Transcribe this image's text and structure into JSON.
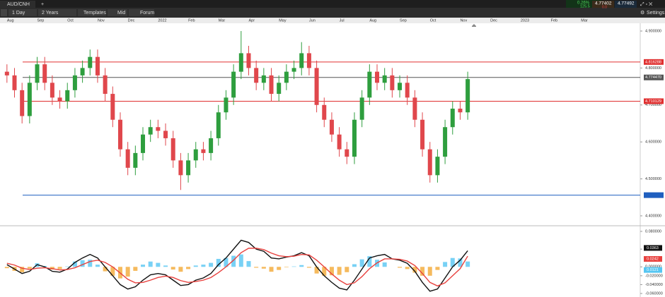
{
  "toolbar": {
    "symbol": "AUD/CNH",
    "interval": "1 Day",
    "range": "2 Years",
    "templates": "Templates",
    "price_type": "Mid",
    "forum": "Forum",
    "settings": "Settings",
    "change": "0.26%",
    "spread": "125.5",
    "bid": "4.77402",
    "ask": "4.77492",
    "volume": "0.0"
  },
  "chart_data": [
    {
      "type": "candlestick",
      "x": [
        0,
        0.25,
        0.5,
        0.75,
        1,
        1.25,
        1.5,
        1.75,
        2,
        2.25,
        2.5,
        2.75,
        3,
        3.25,
        3.5,
        3.75,
        4,
        4.25,
        4.5,
        4.75,
        5,
        5.25,
        5.5,
        5.75,
        6,
        6.25,
        6.5,
        6.75,
        7,
        7.25,
        7.5,
        7.75,
        8,
        8.25,
        8.5,
        8.75,
        9,
        9.25,
        9.5,
        9.75,
        10,
        10.25,
        10.5,
        10.75,
        11,
        11.25,
        11.5,
        11.75,
        12,
        12.25,
        12.5,
        12.75,
        13,
        13.25,
        13.5,
        13.75,
        14,
        14.25,
        14.5,
        14.75,
        15,
        15.25
      ],
      "open": [
        4.79,
        4.78,
        4.74,
        4.67,
        4.76,
        4.81,
        4.76,
        4.72,
        4.71,
        4.74,
        4.78,
        4.8,
        4.83,
        4.78,
        4.73,
        4.66,
        4.58,
        4.53,
        4.57,
        4.62,
        4.64,
        4.63,
        4.61,
        4.55,
        4.51,
        4.55,
        4.58,
        4.57,
        4.61,
        4.68,
        4.72,
        4.79,
        4.84,
        4.8,
        4.76,
        4.78,
        4.73,
        4.76,
        4.79,
        4.8,
        4.84,
        4.8,
        4.7,
        4.66,
        4.62,
        4.58,
        4.56,
        4.66,
        4.72,
        4.79,
        4.76,
        4.78,
        4.74,
        4.76,
        4.72,
        4.66,
        4.58,
        4.51,
        4.56,
        4.64,
        4.69,
        4.68
      ],
      "high": [
        4.81,
        4.8,
        4.76,
        4.78,
        4.83,
        4.83,
        4.78,
        4.74,
        4.76,
        4.8,
        4.82,
        4.85,
        4.85,
        4.8,
        4.75,
        4.68,
        4.6,
        4.59,
        4.64,
        4.66,
        4.66,
        4.65,
        4.63,
        4.57,
        4.57,
        4.6,
        4.6,
        4.63,
        4.7,
        4.74,
        4.81,
        4.9,
        4.86,
        4.82,
        4.8,
        4.8,
        4.78,
        4.81,
        4.82,
        4.87,
        4.86,
        4.82,
        4.72,
        4.68,
        4.64,
        4.6,
        4.68,
        4.74,
        4.81,
        4.81,
        4.8,
        4.8,
        4.78,
        4.78,
        4.74,
        4.68,
        4.6,
        4.58,
        4.66,
        4.71,
        4.71,
        4.79
      ],
      "low": [
        4.76,
        4.72,
        4.65,
        4.65,
        4.74,
        4.74,
        4.7,
        4.69,
        4.69,
        4.72,
        4.76,
        4.78,
        4.76,
        4.71,
        4.64,
        4.56,
        4.51,
        4.51,
        4.55,
        4.6,
        4.61,
        4.59,
        4.53,
        4.47,
        4.49,
        4.53,
        4.55,
        4.55,
        4.59,
        4.66,
        4.7,
        4.77,
        4.78,
        4.74,
        4.74,
        4.71,
        4.71,
        4.74,
        4.77,
        4.78,
        4.78,
        4.68,
        4.64,
        4.6,
        4.56,
        4.54,
        4.54,
        4.64,
        4.7,
        4.74,
        4.74,
        4.72,
        4.72,
        4.7,
        4.64,
        4.56,
        4.49,
        4.49,
        4.54,
        4.62,
        4.66,
        4.66
      ],
      "close": [
        4.78,
        4.74,
        4.67,
        4.76,
        4.81,
        4.76,
        4.72,
        4.71,
        4.74,
        4.78,
        4.8,
        4.83,
        4.78,
        4.73,
        4.66,
        4.58,
        4.53,
        4.57,
        4.62,
        4.64,
        4.63,
        4.61,
        4.55,
        4.51,
        4.55,
        4.58,
        4.57,
        4.61,
        4.68,
        4.72,
        4.79,
        4.84,
        4.8,
        4.76,
        4.78,
        4.73,
        4.76,
        4.79,
        4.8,
        4.84,
        4.8,
        4.7,
        4.66,
        4.62,
        4.58,
        4.56,
        4.66,
        4.72,
        4.79,
        4.76,
        4.78,
        4.74,
        4.76,
        4.72,
        4.66,
        4.58,
        4.51,
        4.56,
        4.64,
        4.69,
        4.68,
        4.77
      ],
      "up_color": "#2e9e3e",
      "down_color": "#e0474c",
      "xlim": [
        -0.23,
        20.96
      ],
      "xticks": [
        {
          "value": 0,
          "label": "Aug"
        },
        {
          "value": 1,
          "label": "Sep"
        },
        {
          "value": 2,
          "label": "Oct"
        },
        {
          "value": 3,
          "label": "Nov"
        },
        {
          "value": 4,
          "label": "Dec"
        },
        {
          "value": 5,
          "label": "2022"
        },
        {
          "value": 6,
          "label": "Feb"
        },
        {
          "value": 7,
          "label": "Mar"
        },
        {
          "value": 8,
          "label": "Apr"
        },
        {
          "value": 9,
          "label": "May"
        },
        {
          "value": 10,
          "label": "Jun"
        },
        {
          "value": 11,
          "label": "Jul"
        },
        {
          "value": 12,
          "label": "Aug"
        },
        {
          "value": 13,
          "label": "Sep"
        },
        {
          "value": 14,
          "label": "Oct"
        },
        {
          "value": 15,
          "label": "Nov"
        },
        {
          "value": 16,
          "label": "Dec"
        },
        {
          "value": 17,
          "label": "2023"
        },
        {
          "value": 18,
          "label": "Feb"
        },
        {
          "value": 19,
          "label": "Mar"
        }
      ],
      "ylim": [
        4.377,
        4.921
      ],
      "yticks": [
        {
          "value": 4.9,
          "label": "4.900000"
        },
        {
          "value": 4.8,
          "label": "4.800000"
        },
        {
          "value": 4.7,
          "label": "4.700000"
        },
        {
          "value": 4.6,
          "label": "4.600000"
        },
        {
          "value": 4.5,
          "label": "4.500000"
        },
        {
          "value": 4.4,
          "label": "4.400000"
        }
      ],
      "levels": [
        {
          "value": 4.816288,
          "label": "4.816288",
          "color": "#e03030"
        },
        {
          "value": 4.77447,
          "label": "4.774470",
          "color": "#555555"
        },
        {
          "value": 4.710129,
          "label": "4.710129",
          "color": "#e03030"
        },
        {
          "value": 4.456,
          "color": "#1f5fbf"
        }
      ]
    },
    {
      "type": "macd",
      "x": [
        0,
        0.25,
        0.5,
        0.75,
        1,
        1.25,
        1.5,
        1.75,
        2,
        2.25,
        2.5,
        2.75,
        3,
        3.25,
        3.5,
        3.75,
        4,
        4.25,
        4.5,
        4.75,
        5,
        5.25,
        5.5,
        5.75,
        6,
        6.25,
        6.5,
        6.75,
        7,
        7.25,
        7.5,
        7.75,
        8,
        8.25,
        8.5,
        8.75,
        9,
        9.25,
        9.5,
        9.75,
        10,
        10.25,
        10.5,
        10.75,
        11,
        11.25,
        11.5,
        11.75,
        12,
        12.25,
        12.5,
        12.75,
        13,
        13.25,
        13.5,
        13.75,
        14,
        14.25,
        14.5,
        14.75,
        15,
        15.25
      ],
      "xlim": [
        -0.23,
        20.96
      ],
      "ylim": [
        -0.0632,
        0.0895
      ],
      "yticks": [
        {
          "value": 0.08,
          "label": "0.080000"
        },
        {
          "value": 0.04,
          "label": "0.040000"
        },
        {
          "value": 0,
          "label": "0.000000"
        },
        {
          "value": -0.02,
          "label": "-0.020000"
        },
        {
          "value": -0.04,
          "label": "-0.040000"
        },
        {
          "value": -0.06,
          "label": "-0.060000"
        }
      ],
      "series": [
        {
          "color": "#111111",
          "values": [
            0.005,
            -0.005,
            -0.015,
            -0.01,
            0.005,
            0.0,
            -0.01,
            -0.012,
            -0.005,
            0.01,
            0.02,
            0.028,
            0.02,
            0.0,
            -0.02,
            -0.04,
            -0.05,
            -0.045,
            -0.03,
            -0.018,
            -0.015,
            -0.018,
            -0.03,
            -0.042,
            -0.04,
            -0.03,
            -0.025,
            -0.015,
            0.005,
            0.02,
            0.04,
            0.06,
            0.055,
            0.04,
            0.035,
            0.02,
            0.018,
            0.022,
            0.025,
            0.032,
            0.025,
            0.0,
            -0.02,
            -0.035,
            -0.048,
            -0.052,
            -0.03,
            -0.005,
            0.02,
            0.025,
            0.028,
            0.018,
            0.015,
            0.008,
            -0.01,
            -0.035,
            -0.055,
            -0.05,
            -0.025,
            0.0,
            0.015,
            0.0363
          ]
        },
        {
          "color": "#e8413e",
          "values": [
            0.008,
            0.004,
            -0.003,
            -0.006,
            -0.003,
            -0.002,
            -0.004,
            -0.007,
            -0.006,
            -0.002,
            0.005,
            0.012,
            0.015,
            0.01,
            0.0,
            -0.014,
            -0.028,
            -0.036,
            -0.035,
            -0.03,
            -0.024,
            -0.021,
            -0.024,
            -0.031,
            -0.035,
            -0.033,
            -0.03,
            -0.024,
            -0.013,
            0.0,
            0.015,
            0.032,
            0.042,
            0.042,
            0.039,
            0.031,
            0.025,
            0.023,
            0.024,
            0.028,
            0.027,
            0.015,
            0.0,
            -0.016,
            -0.03,
            -0.04,
            -0.036,
            -0.022,
            -0.004,
            0.009,
            0.018,
            0.018,
            0.017,
            0.013,
            0.003,
            -0.015,
            -0.035,
            -0.043,
            -0.036,
            -0.02,
            -0.004,
            0.0242
          ]
        }
      ],
      "histogram": [
        -0.003,
        -0.009,
        -0.012,
        -0.004,
        0.008,
        0.002,
        -0.006,
        -0.005,
        0.001,
        0.012,
        0.015,
        0.016,
        0.005,
        -0.01,
        -0.02,
        -0.026,
        -0.022,
        -0.009,
        0.005,
        0.012,
        0.009,
        0.003,
        -0.006,
        -0.011,
        -0.005,
        0.003,
        0.005,
        0.009,
        0.018,
        0.02,
        0.025,
        0.028,
        0.013,
        -0.002,
        -0.004,
        -0.011,
        -0.007,
        -0.001,
        0.001,
        0.004,
        -0.002,
        -0.015,
        -0.02,
        -0.019,
        -0.018,
        -0.012,
        0.006,
        0.017,
        0.024,
        0.016,
        0.01,
        0.0,
        -0.002,
        -0.005,
        -0.013,
        -0.02,
        -0.02,
        -0.007,
        0.011,
        0.02,
        0.019,
        0.0121
      ],
      "pos_color": "#56c6f2",
      "neg_color": "#f2a935"
    }
  ]
}
